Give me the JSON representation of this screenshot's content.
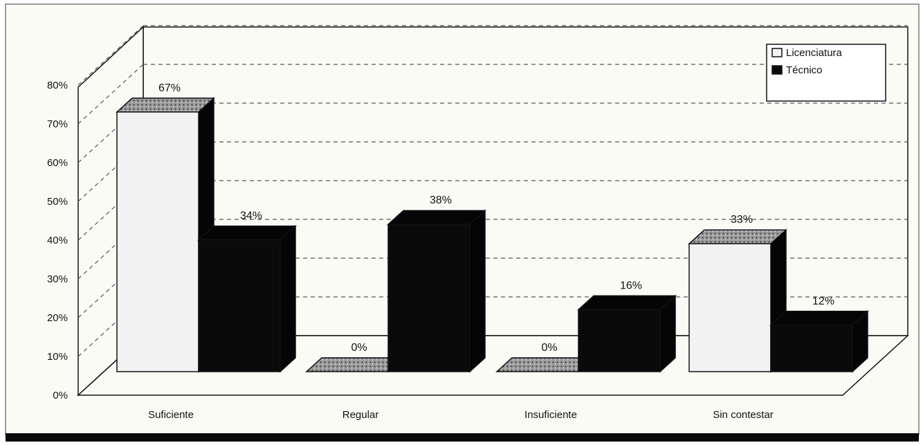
{
  "chart_data": {
    "type": "bar",
    "categories": [
      "Suficiente",
      "Regular",
      "Insuficiente",
      "Sin contestar"
    ],
    "series": [
      {
        "name": "Licenciatura",
        "values": [
          67,
          0,
          0,
          33
        ],
        "labels": [
          "67%",
          "0%",
          "0%",
          "33%"
        ]
      },
      {
        "name": "Técnico",
        "values": [
          34,
          38,
          16,
          12
        ],
        "labels": [
          "34%",
          "38%",
          "16%",
          "12%"
        ]
      }
    ],
    "yticks": [
      "0%",
      "10%",
      "20%",
      "30%",
      "40%",
      "50%",
      "60%",
      "70%",
      "80%"
    ],
    "ylim": [
      0,
      80
    ],
    "grid": true,
    "legend_position": "top-right",
    "colors": {
      "licenciatura": "#f2f2f2",
      "tecnico": "#0a0a0a",
      "background": "#fbfbf6"
    }
  }
}
